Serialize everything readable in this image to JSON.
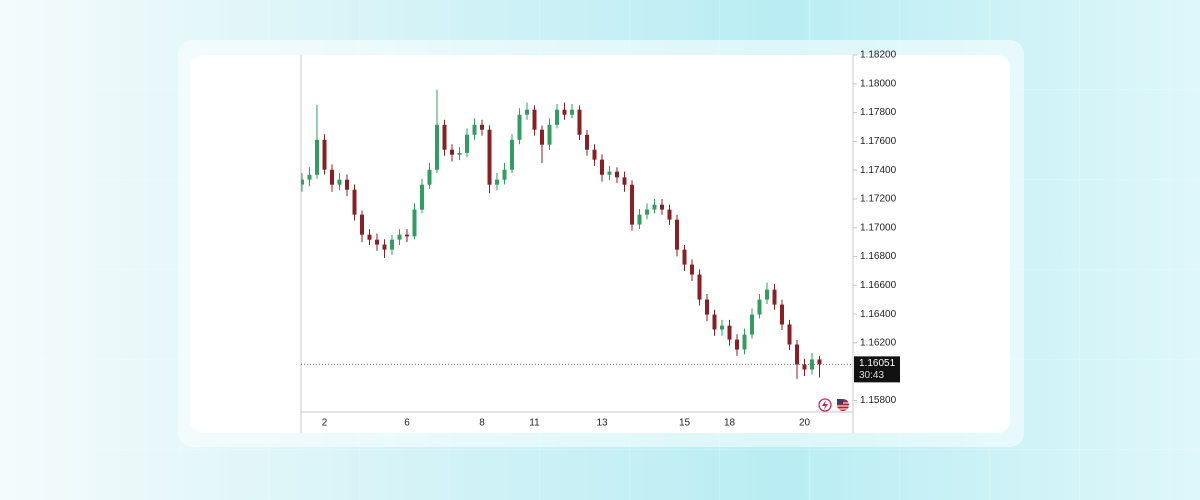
{
  "chart_data": {
    "type": "candlestick",
    "categories": [
      null,
      null,
      null,
      "2",
      null,
      null,
      null,
      null,
      null,
      null,
      null,
      null,
      null,
      null,
      "6",
      null,
      null,
      null,
      null,
      null,
      null,
      null,
      null,
      null,
      "8",
      null,
      null,
      null,
      null,
      null,
      null,
      "11",
      null,
      null,
      null,
      null,
      null,
      null,
      null,
      null,
      "13",
      null,
      null,
      null,
      null,
      null,
      null,
      null,
      null,
      null,
      null,
      "15",
      null,
      null,
      null,
      null,
      null,
      "18",
      null,
      null,
      null,
      null,
      null,
      null,
      null,
      null,
      null,
      "20",
      null,
      null
    ],
    "open": [
      1.173,
      1.17334,
      1.17368,
      1.17611,
      1.17403,
      1.17299,
      1.17334,
      1.17264,
      1.17091,
      1.16952,
      1.16917,
      1.16883,
      1.16848,
      1.16917,
      1.16952,
      1.1694,
      1.17126,
      1.17299,
      1.17403,
      1.17715,
      1.17542,
      1.17507,
      1.1752,
      1.17646,
      1.17715,
      1.17681,
      1.17299,
      1.17334,
      1.17403,
      1.17611,
      1.17785,
      1.1782,
      1.17681,
      1.17577,
      1.17715,
      1.1782,
      1.17785,
      1.1782,
      1.17646,
      1.17542,
      1.17473,
      1.17368,
      1.1739,
      1.1735,
      1.17299,
      1.17022,
      1.17091,
      1.17126,
      1.1716,
      1.17126,
      1.17056,
      1.16848,
      1.16744,
      1.16675,
      1.16501,
      1.16397,
      1.16293,
      1.1632,
      1.16223,
      1.16154,
      1.16258,
      1.16397,
      1.16501,
      1.1657,
      1.16466,
      1.16328,
      1.16189,
      1.1605,
      1.16015,
      1.16085
    ],
    "high": [
      1.1738,
      1.1742,
      1.17854,
      1.1765,
      1.1744,
      1.1738,
      1.1737,
      1.173,
      1.1712,
      1.1699,
      1.1696,
      1.1692,
      1.1695,
      1.1699,
      1.1699,
      1.1717,
      1.1734,
      1.1745,
      1.1796,
      1.1775,
      1.1758,
      1.1756,
      1.1769,
      1.1776,
      1.1775,
      1.1771,
      1.1738,
      1.1745,
      1.1765,
      1.1783,
      1.1787,
      1.1785,
      1.1771,
      1.1776,
      1.1786,
      1.1787,
      1.1786,
      1.1785,
      1.1768,
      1.1758,
      1.1751,
      1.1743,
      1.1742,
      1.1739,
      1.1733,
      1.1713,
      1.1717,
      1.172,
      1.172,
      1.1716,
      1.1709,
      1.1688,
      1.1678,
      1.1671,
      1.1654,
      1.1643,
      1.1636,
      1.1636,
      1.1626,
      1.163,
      1.1644,
      1.1654,
      1.1662,
      1.1661,
      1.165,
      1.1636,
      1.1622,
      1.1609,
      1.1613,
      1.1611
    ],
    "low": [
      1.1725,
      1.1729,
      1.1734,
      1.1737,
      1.1725,
      1.1726,
      1.1722,
      1.1705,
      1.169,
      1.1688,
      1.1684,
      1.1679,
      1.1681,
      1.1688,
      1.169,
      1.1692,
      1.171,
      1.1727,
      1.1738,
      1.175,
      1.1746,
      1.1747,
      1.1749,
      1.1761,
      1.1764,
      1.1724,
      1.1726,
      1.173,
      1.1738,
      1.1758,
      1.1775,
      1.1764,
      1.1745,
      1.1754,
      1.1769,
      1.1775,
      1.1776,
      1.1761,
      1.175,
      1.1743,
      1.1732,
      1.1733,
      1.1731,
      1.1725,
      1.1698,
      1.1699,
      1.1706,
      1.171,
      1.1709,
      1.1702,
      1.168,
      1.167,
      1.1663,
      1.1646,
      1.1635,
      1.1625,
      1.1625,
      1.1618,
      1.1611,
      1.1612,
      1.1623,
      1.1637,
      1.1647,
      1.1643,
      1.1629,
      1.1615,
      1.1595,
      1.1597,
      1.1598,
      1.1596
    ],
    "close": [
      1.17334,
      1.17368,
      1.17611,
      1.17403,
      1.17299,
      1.17334,
      1.17264,
      1.17091,
      1.16952,
      1.16917,
      1.16883,
      1.16848,
      1.16917,
      1.16952,
      1.1694,
      1.17126,
      1.17299,
      1.17403,
      1.17715,
      1.17542,
      1.17507,
      1.1752,
      1.17646,
      1.17715,
      1.17681,
      1.17299,
      1.17334,
      1.17403,
      1.17611,
      1.17785,
      1.1782,
      1.17681,
      1.17577,
      1.17715,
      1.1782,
      1.17785,
      1.1782,
      1.17646,
      1.17542,
      1.17473,
      1.17368,
      1.1739,
      1.1735,
      1.17299,
      1.17022,
      1.17091,
      1.17126,
      1.1716,
      1.17126,
      1.17056,
      1.16848,
      1.16744,
      1.16675,
      1.16501,
      1.16397,
      1.16293,
      1.1632,
      1.16223,
      1.16154,
      1.16258,
      1.16397,
      1.16501,
      1.1657,
      1.16466,
      1.16328,
      1.16189,
      1.1605,
      1.16015,
      1.16085,
      1.16051
    ],
    "up_color": "#2f9e5f",
    "down_color": "#8a1f24",
    "ylim": [
      1.1572,
      1.182
    ],
    "yticks": [
      {
        "value": 1.158,
        "label": "1.15800"
      },
      {
        "value": 1.162,
        "label": "1.16200"
      },
      {
        "value": 1.164,
        "label": "1.16400"
      },
      {
        "value": 1.166,
        "label": "1.16600"
      },
      {
        "value": 1.168,
        "label": "1.16800"
      },
      {
        "value": 1.17,
        "label": "1.17000"
      },
      {
        "value": 1.172,
        "label": "1.17200"
      },
      {
        "value": 1.174,
        "label": "1.17400"
      },
      {
        "value": 1.176,
        "label": "1.17600"
      },
      {
        "value": 1.178,
        "label": "1.17800"
      },
      {
        "value": 1.18,
        "label": "1.18000"
      },
      {
        "value": 1.182,
        "label": "1.18200"
      }
    ],
    "last_price": {
      "value": 1.16051,
      "label": "1.16051"
    },
    "countdown": "30:43"
  }
}
